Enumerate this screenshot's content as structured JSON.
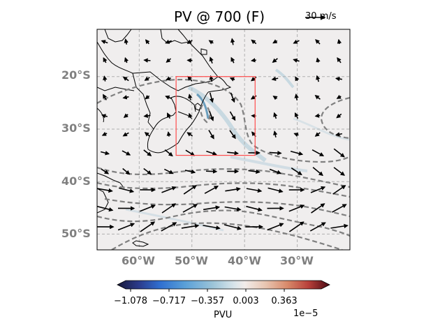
{
  "title": {
    "symbol": "PV",
    "rest": " @ 700 (F)"
  },
  "reference_vector": {
    "label": "30 m/s"
  },
  "map": {
    "lat_labels": [
      "20°S",
      "30°S",
      "40°S",
      "50°S"
    ],
    "lon_labels": [
      "60°W",
      "50°W",
      "40°W",
      "30°W"
    ],
    "extent": {
      "lon_min": -68,
      "lon_max": -20,
      "lat_min": -53,
      "lat_max": -11
    },
    "box": {
      "lon_min": -53,
      "lon_max": -38,
      "lat_min": -35,
      "lat_max": -20
    },
    "box_color": "#ff4d4d",
    "contour_color": "#808080"
  },
  "colorbar": {
    "ticks": [
      "−1.078",
      "−0.717",
      "−0.357",
      "0.003",
      "0.363"
    ],
    "label": "PVU",
    "exponent": "1e−5",
    "colors": [
      "#1a1a3a",
      "#2b3a8a",
      "#2f6fd0",
      "#5aa0d8",
      "#9cc4d8",
      "#d8e4ea",
      "#f2ecea",
      "#e8c4b0",
      "#d88a6a",
      "#b8403a",
      "#8a1a28",
      "#4a0a14"
    ]
  }
}
